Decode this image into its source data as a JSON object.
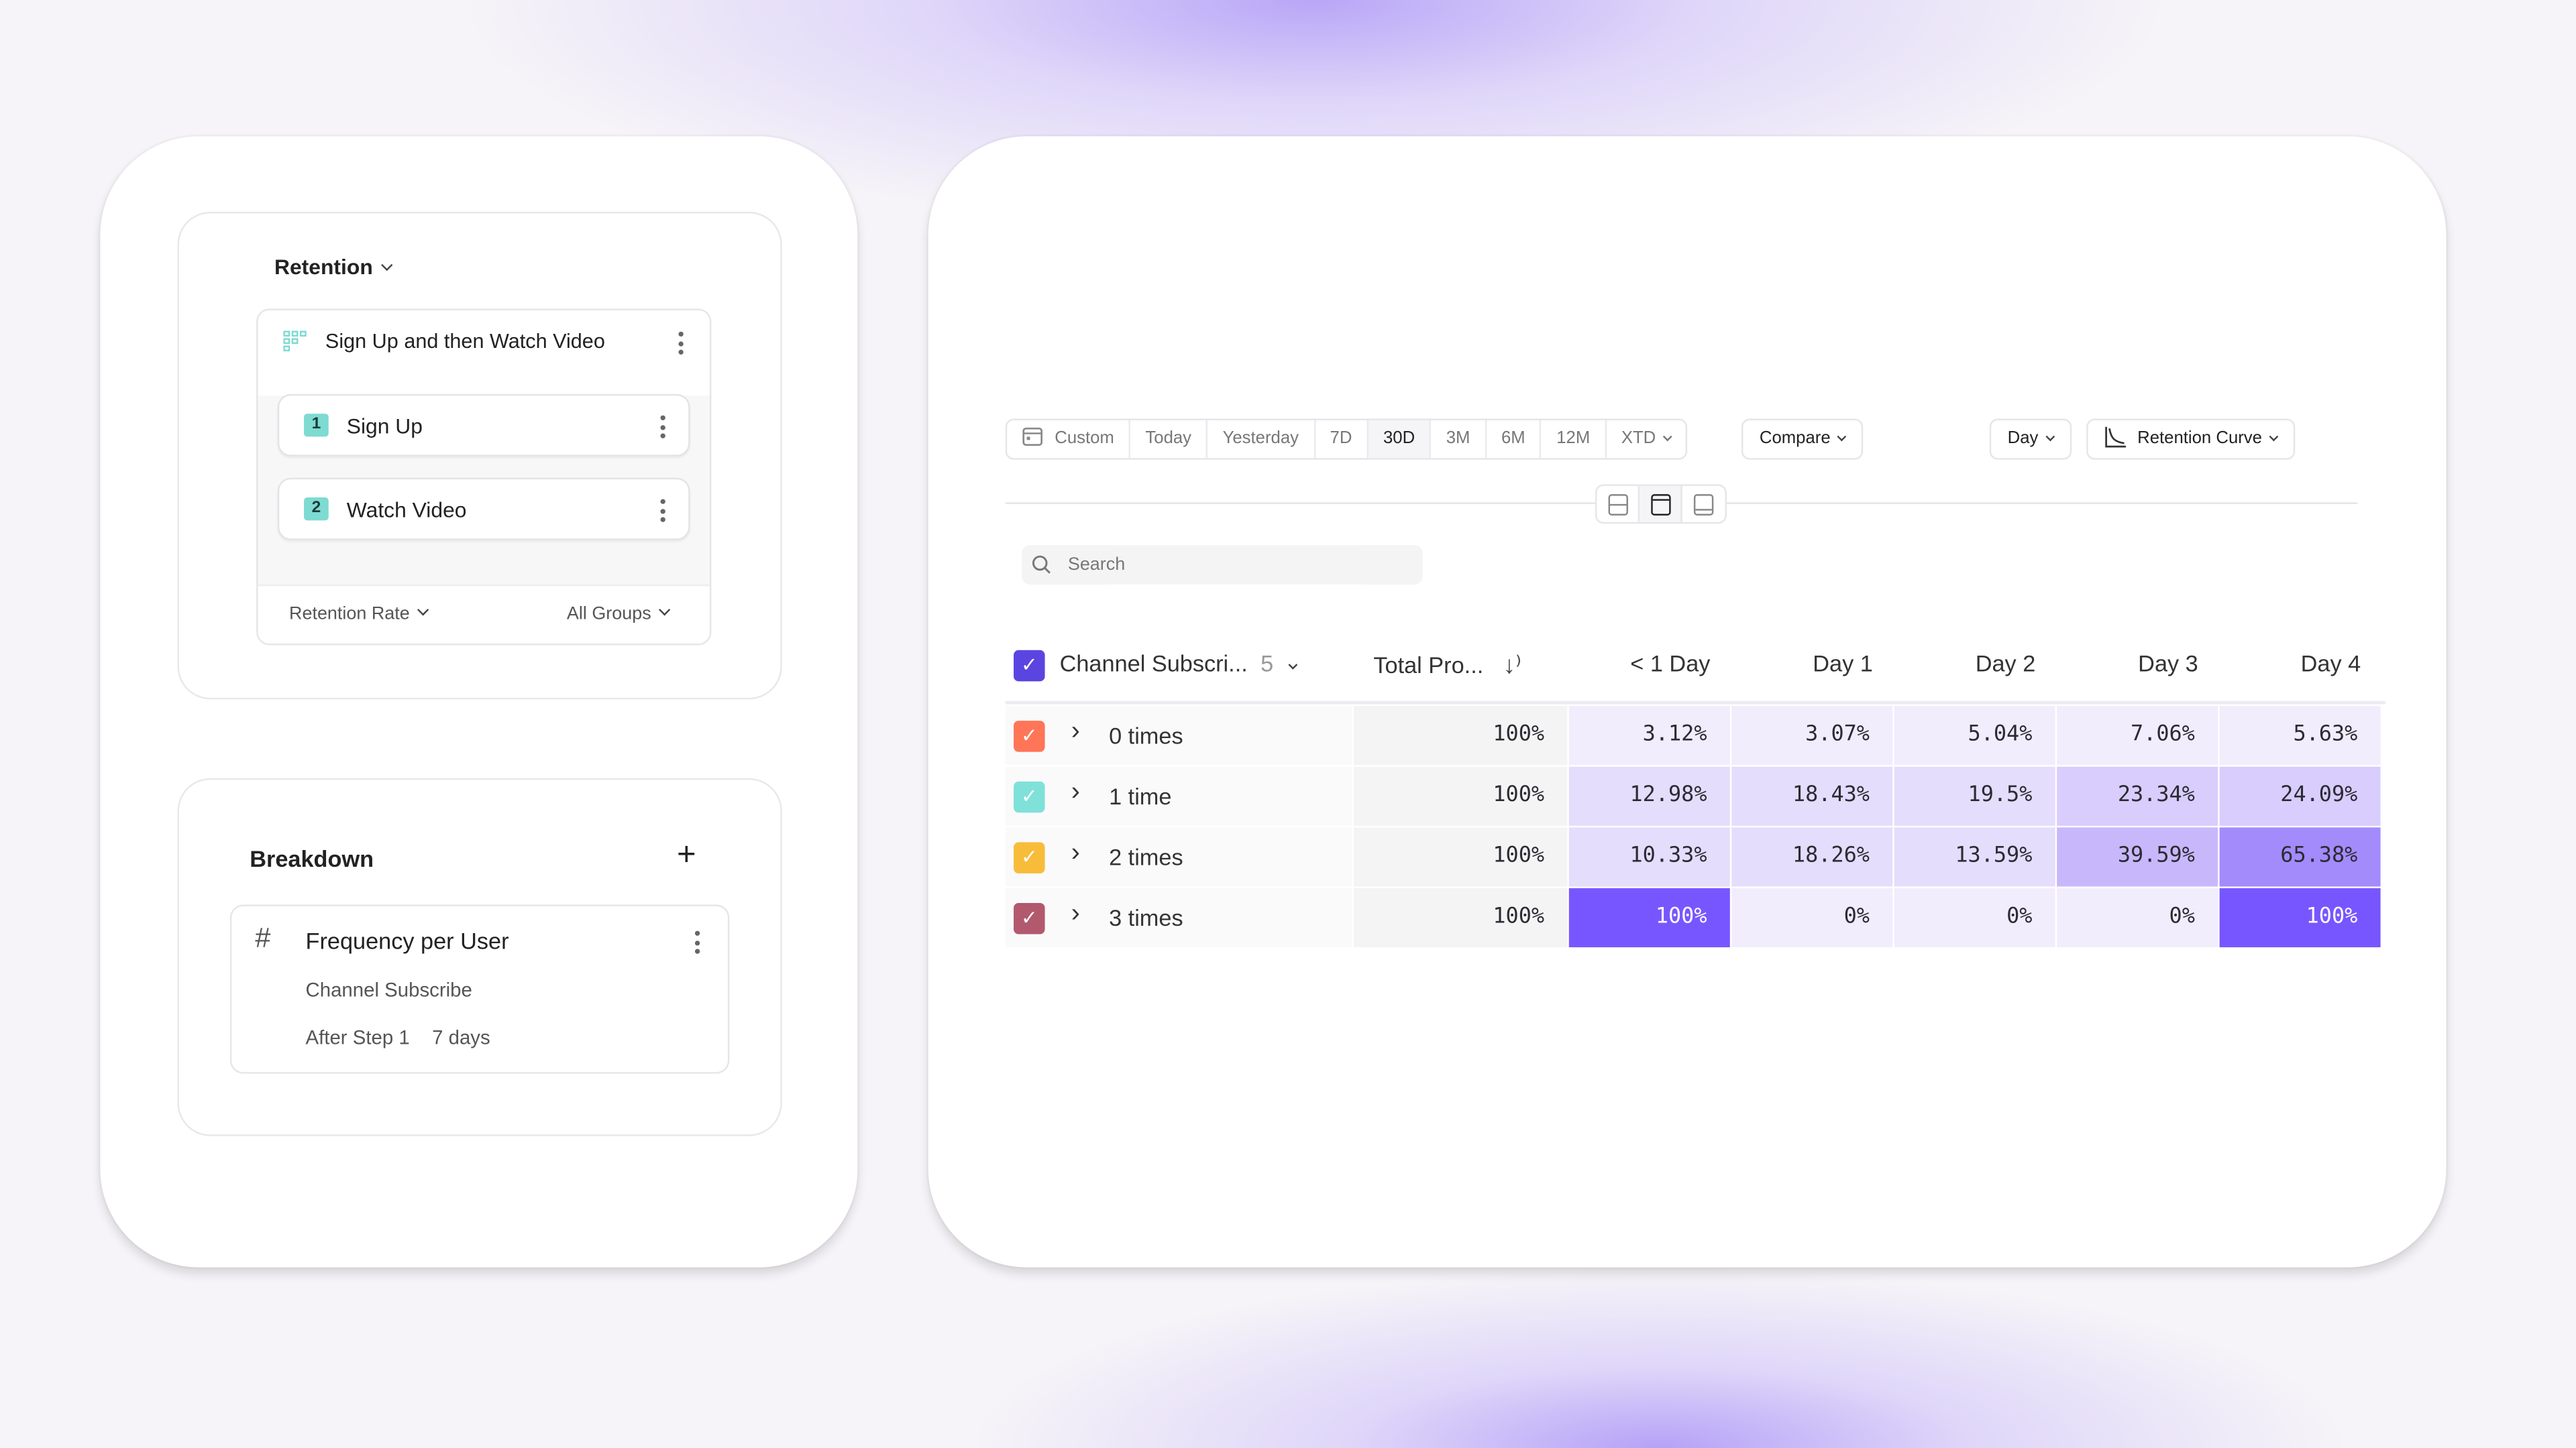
{
  "query": {
    "report_type": "Retention",
    "event_group": {
      "icon": "funnel-grid-icon",
      "title": "Sign Up and then Watch Video"
    },
    "steps": [
      {
        "number": "1",
        "label": "Sign Up"
      },
      {
        "number": "2",
        "label": "Watch Video"
      }
    ],
    "measure": "Retention Rate",
    "groups": "All Groups"
  },
  "breakdown": {
    "title": "Breakdown",
    "add_icon": "plus-icon",
    "item": {
      "icon": "hash-icon",
      "title": "Frequency per User",
      "event": "Channel Subscribe",
      "window_label": "After Step 1",
      "window_value": "7 days"
    }
  },
  "toolbar": {
    "date_ranges": [
      {
        "label": "Custom",
        "icon": "calendar-icon"
      },
      {
        "label": "Today"
      },
      {
        "label": "Yesterday"
      },
      {
        "label": "7D"
      },
      {
        "label": "30D",
        "selected": true
      },
      {
        "label": "3M"
      },
      {
        "label": "6M"
      },
      {
        "label": "12M"
      },
      {
        "label": "XTD"
      }
    ],
    "compare": "Compare",
    "interval": "Day",
    "chart_type": "Retention Curve",
    "layout_options": [
      "split-layout-icon",
      "top-layout-icon",
      "bottom-layout-icon"
    ],
    "selected_layout": 1
  },
  "search": {
    "placeholder": "Search"
  },
  "table": {
    "segment_header": "Channel Subscri...",
    "segment_count": "5",
    "total_header": "Total Pro...",
    "columns": [
      "< 1 Day",
      "Day 1",
      "Day 2",
      "Day 3",
      "Day 4"
    ],
    "accent": "#7856ff",
    "rows": [
      {
        "label": "0 times",
        "color": "#ff7557",
        "total": "100%",
        "values": [
          "3.12%",
          "3.07%",
          "5.04%",
          "7.06%",
          "5.63%"
        ]
      },
      {
        "label": "1 time",
        "color": "#80e1d9",
        "total": "100%",
        "values": [
          "12.98%",
          "18.43%",
          "19.5%",
          "23.34%",
          "24.09%"
        ]
      },
      {
        "label": "2 times",
        "color": "#f8bc3b",
        "total": "100%",
        "values": [
          "10.33%",
          "18.26%",
          "13.59%",
          "39.59%",
          "65.38%"
        ]
      },
      {
        "label": "3 times",
        "color": "#b2596e",
        "total": "100%",
        "values": [
          "100%",
          "0%",
          "0%",
          "0%",
          "100%"
        ]
      }
    ]
  }
}
